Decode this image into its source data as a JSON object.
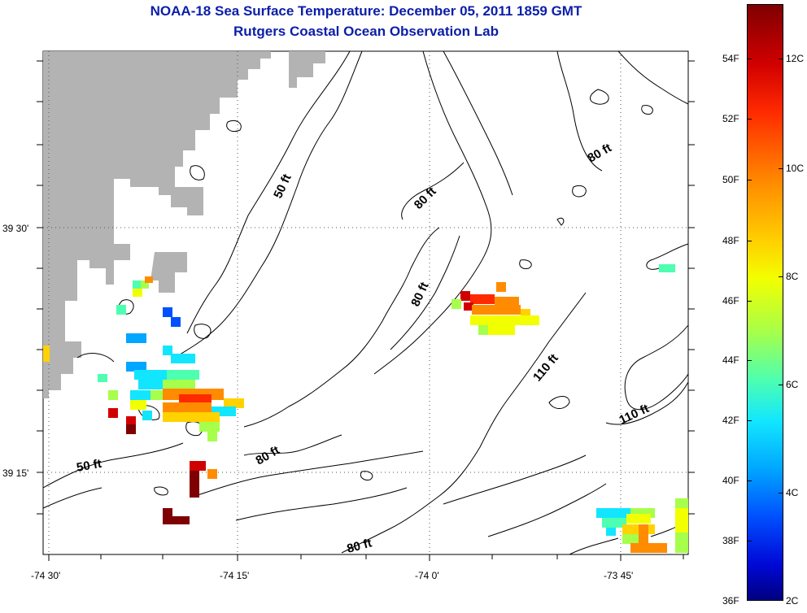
{
  "title": "NOAA-18 Sea Surface Temperature:  December 05, 2011 1859 GMT",
  "subtitle": "Rutgers Coastal Ocean Observation Lab",
  "axes": {
    "x_ticks": [
      "-74 30'",
      "-74 15'",
      "-74 0'",
      "-73 45'"
    ],
    "y_ticks": [
      "39 30'",
      "39 15'"
    ]
  },
  "contour_labels": [
    "50 ft",
    "80 ft",
    "80 ft",
    "80 ft",
    "50 ft",
    "80 ft",
    "110 ft",
    "110 ft",
    "80 ft"
  ],
  "colorbar": {
    "fahrenheit_labels": [
      "54F",
      "52F",
      "50F",
      "48F",
      "46F",
      "44F",
      "42F",
      "40F",
      "38F",
      "36F"
    ],
    "celsius_labels": [
      "12C",
      "10C",
      "8C",
      "6C",
      "4C",
      "2C"
    ],
    "range_celsius": [
      2,
      13
    ]
  },
  "colors": {
    "title": "#0b1ea8",
    "land": "#b3b3b3",
    "contour": "#000000"
  }
}
